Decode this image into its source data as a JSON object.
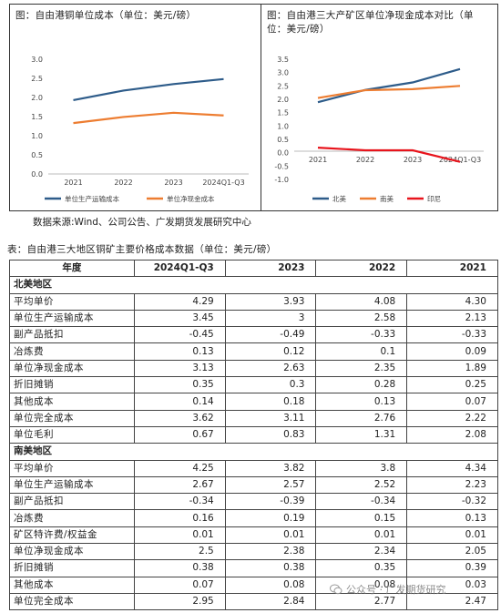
{
  "left_chart": {
    "title": "图：自由港铜单位成本（单位：美元/磅）"
  },
  "right_chart": {
    "title": "图：自由港三大产矿区单位净现金成本对比（单位：美元/磅）"
  },
  "chart_data": [
    {
      "type": "line",
      "title": "图：自由港铜单位成本（单位：美元/磅）",
      "categories": [
        "2021",
        "2022",
        "2023",
        "2024Q1-Q3"
      ],
      "ylim": [
        0,
        3.0
      ],
      "yticks": [
        "0.0",
        "0.5",
        "1.0",
        "1.5",
        "2.0",
        "2.5",
        "3.0"
      ],
      "legend_position": "bottom",
      "grid": false,
      "series": [
        {
          "name": "单位生产运输成本",
          "color": "#2e5c8a",
          "values": [
            1.93,
            2.18,
            2.35,
            2.48
          ]
        },
        {
          "name": "单位净现金成本",
          "color": "#ed7d31",
          "values": [
            1.33,
            1.49,
            1.6,
            1.53
          ]
        }
      ]
    },
    {
      "type": "line",
      "title": "图：自由港三大产矿区单位净现金成本对比（单位：美元/磅）",
      "categories": [
        "2021",
        "2022",
        "2023",
        "2024Q1-Q3"
      ],
      "ylim": [
        -1.0,
        3.5
      ],
      "yticks": [
        "-1.0",
        "-0.5",
        "0.0",
        "0.5",
        "1.0",
        "1.5",
        "2.0",
        "2.5",
        "3.0",
        "3.5"
      ],
      "legend_position": "bottom",
      "grid": false,
      "series": [
        {
          "name": "北美",
          "color": "#2e5c8a",
          "values": [
            1.89,
            2.35,
            2.63,
            3.13
          ]
        },
        {
          "name": "南美",
          "color": "#ed7d31",
          "values": [
            2.05,
            2.34,
            2.38,
            2.5
          ]
        },
        {
          "name": "印尼",
          "color": "#e8141c",
          "values": [
            0.19,
            0.09,
            0.09,
            -0.34
          ]
        }
      ]
    }
  ],
  "source_note": "数据来源:Wind、公司公告、广发期货发展研究中心",
  "table": {
    "title": "表：自由港三大地区铜矿主要价格成本数据（单位：美元/磅）",
    "headers": [
      "年度",
      "2024Q1-Q3",
      "2023",
      "2022",
      "2021"
    ],
    "sections": [
      {
        "name": "北美地区",
        "rows": [
          {
            "label": "平均单价",
            "values": [
              "4.29",
              "3.93",
              "4.08",
              "4.30"
            ]
          },
          {
            "label": "单位生产运输成本",
            "values": [
              "3.45",
              "3",
              "2.58",
              "2.13"
            ]
          },
          {
            "label": "副产品抵扣",
            "values": [
              "-0.45",
              "-0.49",
              "-0.33",
              "-0.33"
            ]
          },
          {
            "label": "冶炼费",
            "values": [
              "0.13",
              "0.12",
              "0.1",
              "0.09"
            ]
          },
          {
            "label": "单位净现金成本",
            "values": [
              "3.13",
              "2.63",
              "2.35",
              "1.89"
            ]
          },
          {
            "label": "折旧摊销",
            "values": [
              "0.35",
              "0.3",
              "0.28",
              "0.25"
            ]
          },
          {
            "label": "其他成本",
            "values": [
              "0.14",
              "0.18",
              "0.13",
              "0.07"
            ]
          },
          {
            "label": "单位完全成本",
            "values": [
              "3.62",
              "3.11",
              "2.76",
              "2.22"
            ]
          },
          {
            "label": "单位毛利",
            "values": [
              "0.67",
              "0.83",
              "1.31",
              "2.08"
            ]
          }
        ]
      },
      {
        "name": "南美地区",
        "rows": [
          {
            "label": "平均单价",
            "values": [
              "4.25",
              "3.82",
              "3.8",
              "4.34"
            ]
          },
          {
            "label": "单位生产运输成本",
            "values": [
              "2.67",
              "2.57",
              "2.52",
              "2.23"
            ]
          },
          {
            "label": "副产品抵扣",
            "values": [
              "-0.34",
              "-0.39",
              "-0.34",
              "-0.32"
            ]
          },
          {
            "label": "冶炼费",
            "values": [
              "0.16",
              "0.19",
              "0.15",
              "0.13"
            ]
          },
          {
            "label": "矿区特许费/权益金",
            "values": [
              "0.01",
              "0.01",
              "0.01",
              "0.01"
            ]
          },
          {
            "label": "单位净现金成本",
            "values": [
              "2.5",
              "2.38",
              "2.34",
              "2.05"
            ]
          },
          {
            "label": "折旧摊销",
            "values": [
              "0.38",
              "0.38",
              "0.35",
              "0.39"
            ]
          },
          {
            "label": "其他成本",
            "values": [
              "0.07",
              "0.08",
              "0.08",
              "0.03"
            ]
          },
          {
            "label": "单位完全成本",
            "values": [
              "2.95",
              "2.84",
              "2.77",
              "2.47"
            ]
          }
        ]
      }
    ]
  },
  "watermark": {
    "text": "公众号 · 广发期货研究",
    "icon": "wechat-icon"
  }
}
